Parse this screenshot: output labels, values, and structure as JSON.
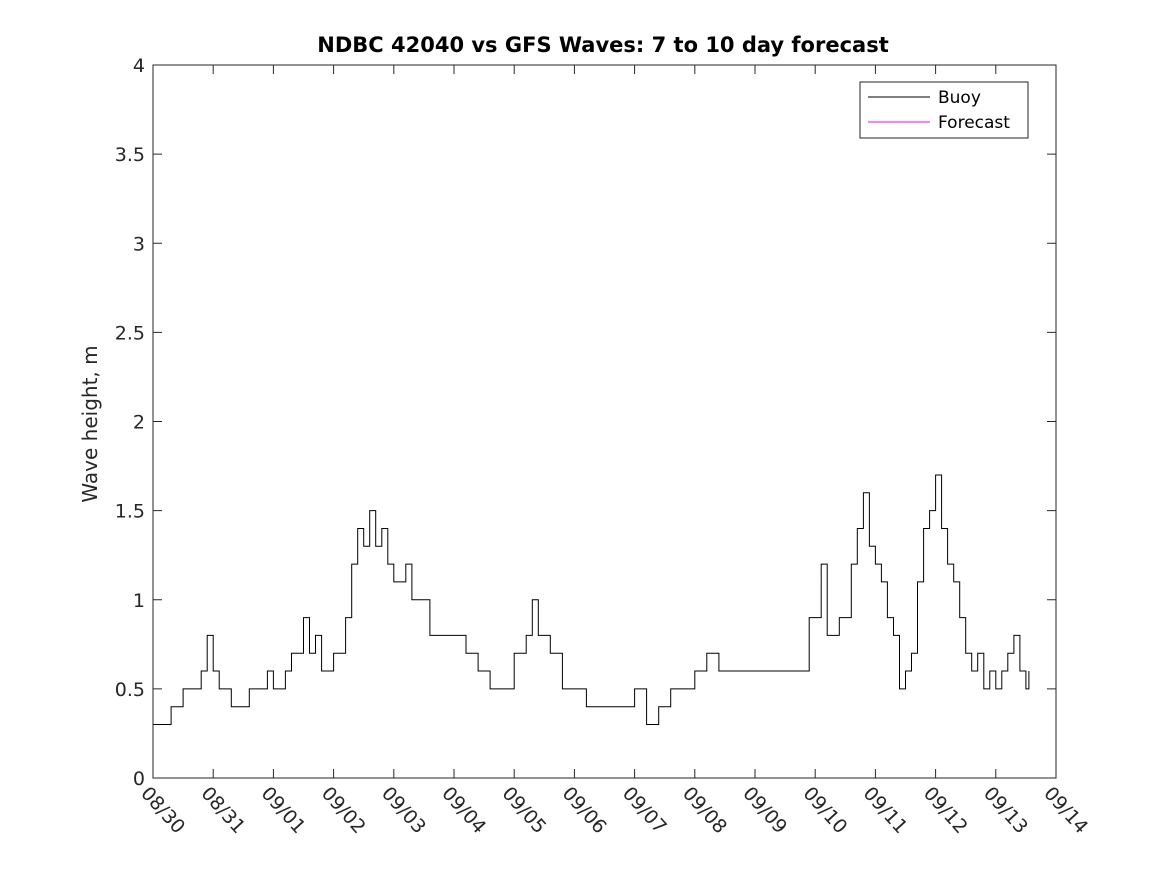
{
  "chart_data": {
    "type": "line",
    "title": "NDBC 42040 vs GFS Waves: 7 to 10 day forecast",
    "xlabel": "",
    "ylabel": "Wave height, m",
    "x_units": "days since 08/30",
    "xlim": [
      0,
      15
    ],
    "ylim": [
      0,
      4
    ],
    "yticks": [
      0,
      0.5,
      1,
      1.5,
      2,
      2.5,
      3,
      3.5,
      4
    ],
    "ytick_labels": [
      "0",
      "0.5",
      "1",
      "1.5",
      "2",
      "2.5",
      "3",
      "3.5",
      "4"
    ],
    "xticks": [
      0,
      1,
      2,
      3,
      4,
      5,
      6,
      7,
      8,
      9,
      10,
      11,
      12,
      13,
      14,
      15
    ],
    "xtick_labels": [
      "08/30",
      "08/31",
      "09/01",
      "09/02",
      "09/03",
      "09/04",
      "09/05",
      "09/06",
      "09/07",
      "09/08",
      "09/09",
      "09/10",
      "09/11",
      "09/12",
      "09/13",
      "09/14"
    ],
    "legend": {
      "placement": "top-right",
      "entries": [
        "Buoy",
        "Forecast"
      ]
    },
    "colors": {
      "buoy": "#000000",
      "forecast": "#ff00ff"
    },
    "buoy": {
      "name": "Buoy",
      "points": [
        [
          0,
          0.3
        ],
        [
          0.3,
          0.3
        ],
        [
          0.3,
          0.4
        ],
        [
          0.5,
          0.4
        ],
        [
          0.5,
          0.5
        ],
        [
          0.7,
          0.5
        ],
        [
          0.8,
          0.6
        ],
        [
          0.9,
          0.8
        ],
        [
          1.0,
          0.6
        ],
        [
          1.1,
          0.5
        ],
        [
          1.3,
          0.4
        ],
        [
          1.6,
          0.4
        ],
        [
          1.6,
          0.5
        ],
        [
          1.8,
          0.5
        ],
        [
          1.9,
          0.6
        ],
        [
          2.0,
          0.5
        ],
        [
          2.2,
          0.6
        ],
        [
          2.3,
          0.7
        ],
        [
          2.5,
          0.9
        ],
        [
          2.6,
          0.7
        ],
        [
          2.7,
          0.8
        ],
        [
          2.8,
          0.6
        ],
        [
          3.0,
          0.7
        ],
        [
          3.2,
          0.9
        ],
        [
          3.3,
          1.2
        ],
        [
          3.4,
          1.4
        ],
        [
          3.5,
          1.3
        ],
        [
          3.6,
          1.5
        ],
        [
          3.7,
          1.3
        ],
        [
          3.8,
          1.4
        ],
        [
          3.9,
          1.2
        ],
        [
          4.0,
          1.1
        ],
        [
          4.2,
          1.2
        ],
        [
          4.3,
          1.0
        ],
        [
          4.5,
          1.0
        ],
        [
          4.6,
          0.8
        ],
        [
          4.8,
          0.8
        ],
        [
          5.0,
          0.8
        ],
        [
          5.2,
          0.7
        ],
        [
          5.4,
          0.6
        ],
        [
          5.6,
          0.5
        ],
        [
          5.8,
          0.5
        ],
        [
          6.0,
          0.7
        ],
        [
          6.2,
          0.8
        ],
        [
          6.3,
          1.0
        ],
        [
          6.4,
          0.8
        ],
        [
          6.6,
          0.7
        ],
        [
          6.8,
          0.5
        ],
        [
          7.0,
          0.5
        ],
        [
          7.2,
          0.4
        ],
        [
          7.5,
          0.4
        ],
        [
          7.8,
          0.4
        ],
        [
          8.0,
          0.5
        ],
        [
          8.2,
          0.3
        ],
        [
          8.4,
          0.4
        ],
        [
          8.6,
          0.5
        ],
        [
          8.8,
          0.5
        ],
        [
          9.0,
          0.6
        ],
        [
          9.2,
          0.7
        ],
        [
          9.4,
          0.6
        ],
        [
          9.6,
          0.6
        ],
        [
          9.8,
          0.6
        ],
        [
          10.0,
          0.6
        ],
        [
          10.2,
          0.6
        ],
        [
          10.4,
          0.6
        ],
        [
          10.6,
          0.6
        ],
        [
          10.8,
          0.6
        ],
        [
          10.9,
          0.9
        ],
        [
          11.1,
          1.2
        ],
        [
          11.2,
          0.8
        ],
        [
          11.4,
          0.9
        ],
        [
          11.6,
          1.2
        ],
        [
          11.7,
          1.4
        ],
        [
          11.8,
          1.6
        ],
        [
          11.9,
          1.3
        ],
        [
          12.0,
          1.2
        ],
        [
          12.1,
          1.1
        ],
        [
          12.2,
          0.9
        ],
        [
          12.3,
          0.8
        ],
        [
          12.4,
          0.5
        ],
        [
          12.5,
          0.6
        ],
        [
          12.6,
          0.7
        ],
        [
          12.7,
          1.1
        ],
        [
          12.8,
          1.4
        ],
        [
          12.9,
          1.5
        ],
        [
          13.0,
          1.7
        ],
        [
          13.1,
          1.4
        ],
        [
          13.2,
          1.2
        ],
        [
          13.3,
          1.1
        ],
        [
          13.4,
          0.9
        ],
        [
          13.5,
          0.7
        ],
        [
          13.6,
          0.6
        ],
        [
          13.7,
          0.7
        ],
        [
          13.8,
          0.5
        ],
        [
          13.9,
          0.6
        ],
        [
          14.0,
          0.5
        ],
        [
          14.1,
          0.6
        ],
        [
          14.2,
          0.7
        ],
        [
          14.3,
          0.8
        ],
        [
          14.4,
          0.6
        ],
        [
          14.5,
          0.5
        ],
        [
          14.55,
          0.6
        ]
      ]
    },
    "buoy_extra": "",
    "forecast_series": [],
    "forecast_dots": []
  }
}
